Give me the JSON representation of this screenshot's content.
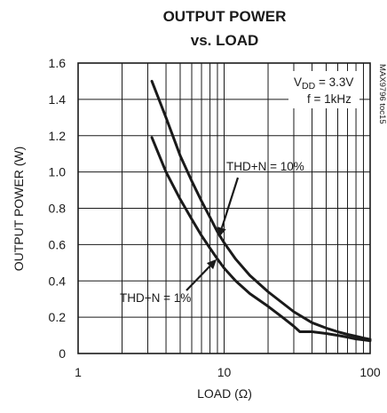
{
  "chart_data": {
    "type": "line",
    "title_line1": "OUTPUT POWER",
    "title_line2": "vs. LOAD",
    "xlabel": "LOAD (Ω)",
    "ylabel": "OUTPUT POWER (W)",
    "x_scale": "log",
    "xlim": [
      1,
      100
    ],
    "ylim": [
      0,
      1.6
    ],
    "x_ticks": [
      "1",
      "10",
      "100"
    ],
    "y_ticks": [
      "0",
      "0.2",
      "0.4",
      "0.6",
      "0.8",
      "1.0",
      "1.2",
      "1.4",
      "1.6"
    ],
    "grid": true,
    "conditions": {
      "vdd": "V",
      "vdd_sub": "DD",
      "vdd_value": " = 3.3V",
      "freq": "f = 1kHz"
    },
    "side_label": "MAX9796 toc15",
    "series": [
      {
        "name": "THD+N = 10%",
        "x": [
          3.2,
          4,
          5,
          6,
          7,
          8,
          9,
          10,
          12,
          15,
          20,
          30,
          40,
          50,
          60,
          70,
          80,
          90,
          100
        ],
        "y": [
          1.5,
          1.3,
          1.09,
          0.95,
          0.84,
          0.75,
          0.67,
          0.61,
          0.52,
          0.43,
          0.34,
          0.23,
          0.17,
          0.14,
          0.12,
          0.105,
          0.095,
          0.085,
          0.078
        ]
      },
      {
        "name": "THD+N = 1%",
        "x": [
          3.2,
          4,
          5,
          6,
          7,
          8,
          9,
          10,
          12,
          15,
          20,
          25,
          30,
          33,
          40,
          50,
          60,
          70,
          80,
          90,
          100
        ],
        "y": [
          1.19,
          1.0,
          0.85,
          0.74,
          0.65,
          0.58,
          0.52,
          0.47,
          0.4,
          0.33,
          0.26,
          0.2,
          0.15,
          0.12,
          0.12,
          0.11,
          0.1,
          0.09,
          0.08,
          0.075,
          0.07
        ]
      }
    ],
    "annotations": [
      {
        "text": "THD+N = 10%",
        "series": 0,
        "arrow_to": [
          9.2,
          0.64
        ]
      },
      {
        "text": "THD+N = 1%",
        "series": 1,
        "arrow_to": [
          8.9,
          0.52
        ]
      }
    ]
  }
}
